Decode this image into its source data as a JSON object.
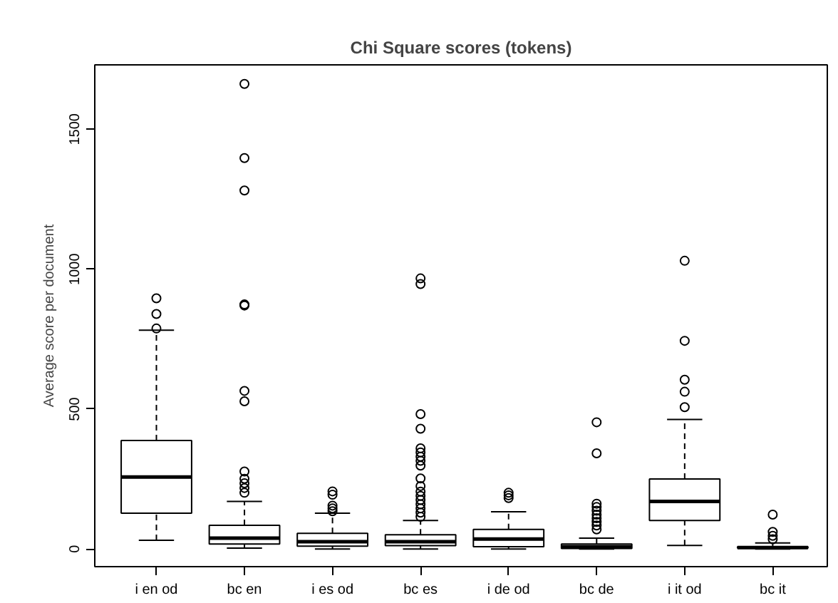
{
  "chart_data": {
    "type": "box",
    "title": "Chi Square scores (tokens)",
    "ylabel": "Average score per document",
    "categories": [
      "i en od",
      "bc en",
      "i es od",
      "bc es",
      "i de od",
      "bc de",
      "i it od",
      "bc it"
    ],
    "boxes": [
      {
        "low": 31,
        "q1": 128,
        "median": 257,
        "q3": 388,
        "high": 782,
        "outliers": [
          896,
          840,
          788
        ]
      },
      {
        "low": 3,
        "q1": 18,
        "median": 39,
        "q3": 85,
        "high": 170,
        "outliers": [
          1662,
          1397,
          1281,
          874,
          870,
          565,
          528,
          277,
          251,
          235,
          218,
          201
        ]
      },
      {
        "low": 0,
        "q1": 10,
        "median": 26,
        "q3": 56,
        "high": 128,
        "outliers": [
          206,
          194,
          155,
          145,
          135
        ]
      },
      {
        "low": 0,
        "q1": 12,
        "median": 26,
        "q3": 51,
        "high": 102,
        "outliers": [
          967,
          947,
          482,
          430,
          360,
          345,
          330,
          315,
          298,
          252,
          225,
          205,
          190,
          175,
          160,
          145,
          130,
          115
        ]
      },
      {
        "low": 0,
        "q1": 8,
        "median": 36,
        "q3": 70,
        "high": 133,
        "outliers": [
          201,
          192,
          182
        ]
      },
      {
        "low": 0,
        "q1": 2,
        "median": 8,
        "q3": 18,
        "high": 39,
        "outliers": [
          453,
          342,
          162,
          150,
          137,
          123,
          110,
          97,
          84,
          70
        ]
      },
      {
        "low": 13,
        "q1": 102,
        "median": 170,
        "q3": 250,
        "high": 463,
        "outliers": [
          1030,
          744,
          605,
          562,
          507
        ]
      },
      {
        "low": 0,
        "q1": 3,
        "median": 5,
        "q3": 8,
        "high": 22,
        "outliers": [
          123,
          61,
          47,
          35
        ]
      }
    ],
    "ylim": [
      -63,
      1730
    ],
    "yticks": [
      0,
      500,
      1000,
      1500
    ],
    "marker": "circle",
    "grid": false
  }
}
